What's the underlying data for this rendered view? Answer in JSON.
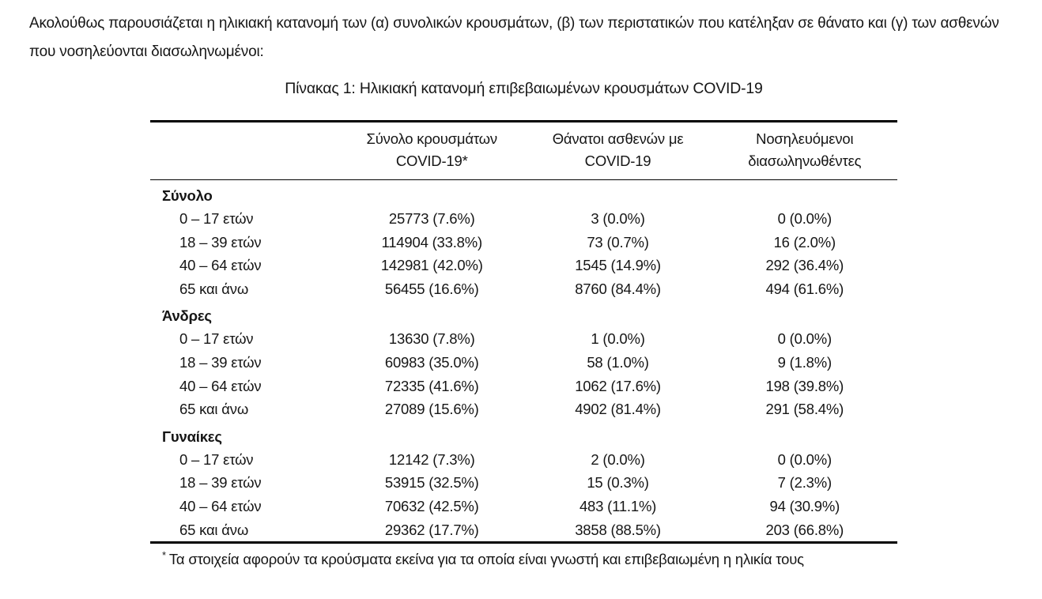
{
  "page": {
    "intro": "Ακολούθως παρουσιάζεται η ηλικιακή κατανομή των (α) συνολικών κρουσμάτων, (β) των περιστατικών που κατέληξαν σε θάνατο και (γ) των ασθενών που νοσηλεύονται διασωληνωμένοι:",
    "table_title": "Πίνακας 1: Ηλικιακή κατανομή επιβεβαιωμένων κρουσμάτων COVID-19"
  },
  "table": {
    "column_headers": [
      {
        "line1": "Σύνολο κρουσμάτων",
        "line2": "COVID-19*"
      },
      {
        "line1": "Θάνατοι ασθενών με",
        "line2": "COVID-19"
      },
      {
        "line1": "Νοσηλευόμενοι",
        "line2": "διασωληνωθέντες"
      }
    ],
    "groups": [
      {
        "label": "Σύνολο",
        "rows": [
          {
            "label": "0 – 17 ετών",
            "cases": "25773 (7.6%)",
            "deaths": "3 (0.0%)",
            "intubated": "0 (0.0%)"
          },
          {
            "label": "18 – 39 ετών",
            "cases": "114904 (33.8%)",
            "deaths": "73 (0.7%)",
            "intubated": "16 (2.0%)"
          },
          {
            "label": "40 – 64 ετών",
            "cases": "142981 (42.0%)",
            "deaths": "1545 (14.9%)",
            "intubated": "292 (36.4%)"
          },
          {
            "label": "65 και άνω",
            "cases": "56455 (16.6%)",
            "deaths": "8760 (84.4%)",
            "intubated": "494 (61.6%)"
          }
        ]
      },
      {
        "label": "Άνδρες",
        "rows": [
          {
            "label": "0 – 17 ετών",
            "cases": "13630 (7.8%)",
            "deaths": "1 (0.0%)",
            "intubated": "0 (0.0%)"
          },
          {
            "label": "18 – 39 ετών",
            "cases": "60983 (35.0%)",
            "deaths": "58 (1.0%)",
            "intubated": "9 (1.8%)"
          },
          {
            "label": "40 – 64 ετών",
            "cases": "72335 (41.6%)",
            "deaths": "1062 (17.6%)",
            "intubated": "198 (39.8%)"
          },
          {
            "label": "65 και άνω",
            "cases": "27089 (15.6%)",
            "deaths": "4902 (81.4%)",
            "intubated": "291 (58.4%)"
          }
        ]
      },
      {
        "label": "Γυναίκες",
        "rows": [
          {
            "label": "0 – 17 ετών",
            "cases": "12142 (7.3%)",
            "deaths": "2 (0.0%)",
            "intubated": "0 (0.0%)"
          },
          {
            "label": "18 – 39 ετών",
            "cases": "53915 (32.5%)",
            "deaths": "15 (0.3%)",
            "intubated": "7 (2.3%)"
          },
          {
            "label": "40 – 64 ετών",
            "cases": "70632 (42.5%)",
            "deaths": "483 (11.1%)",
            "intubated": "94 (30.9%)"
          },
          {
            "label": "65 και άνω",
            "cases": "29362 (17.7%)",
            "deaths": "3858 (88.5%)",
            "intubated": "203 (66.8%)"
          }
        ]
      }
    ],
    "footnote_marker": "*",
    "footnote": "Τα στοιχεία αφορούν τα κρούσματα εκείνα για τα οποία είναι γνωστή και επιβεβαιωμένη η ηλικία τους"
  }
}
